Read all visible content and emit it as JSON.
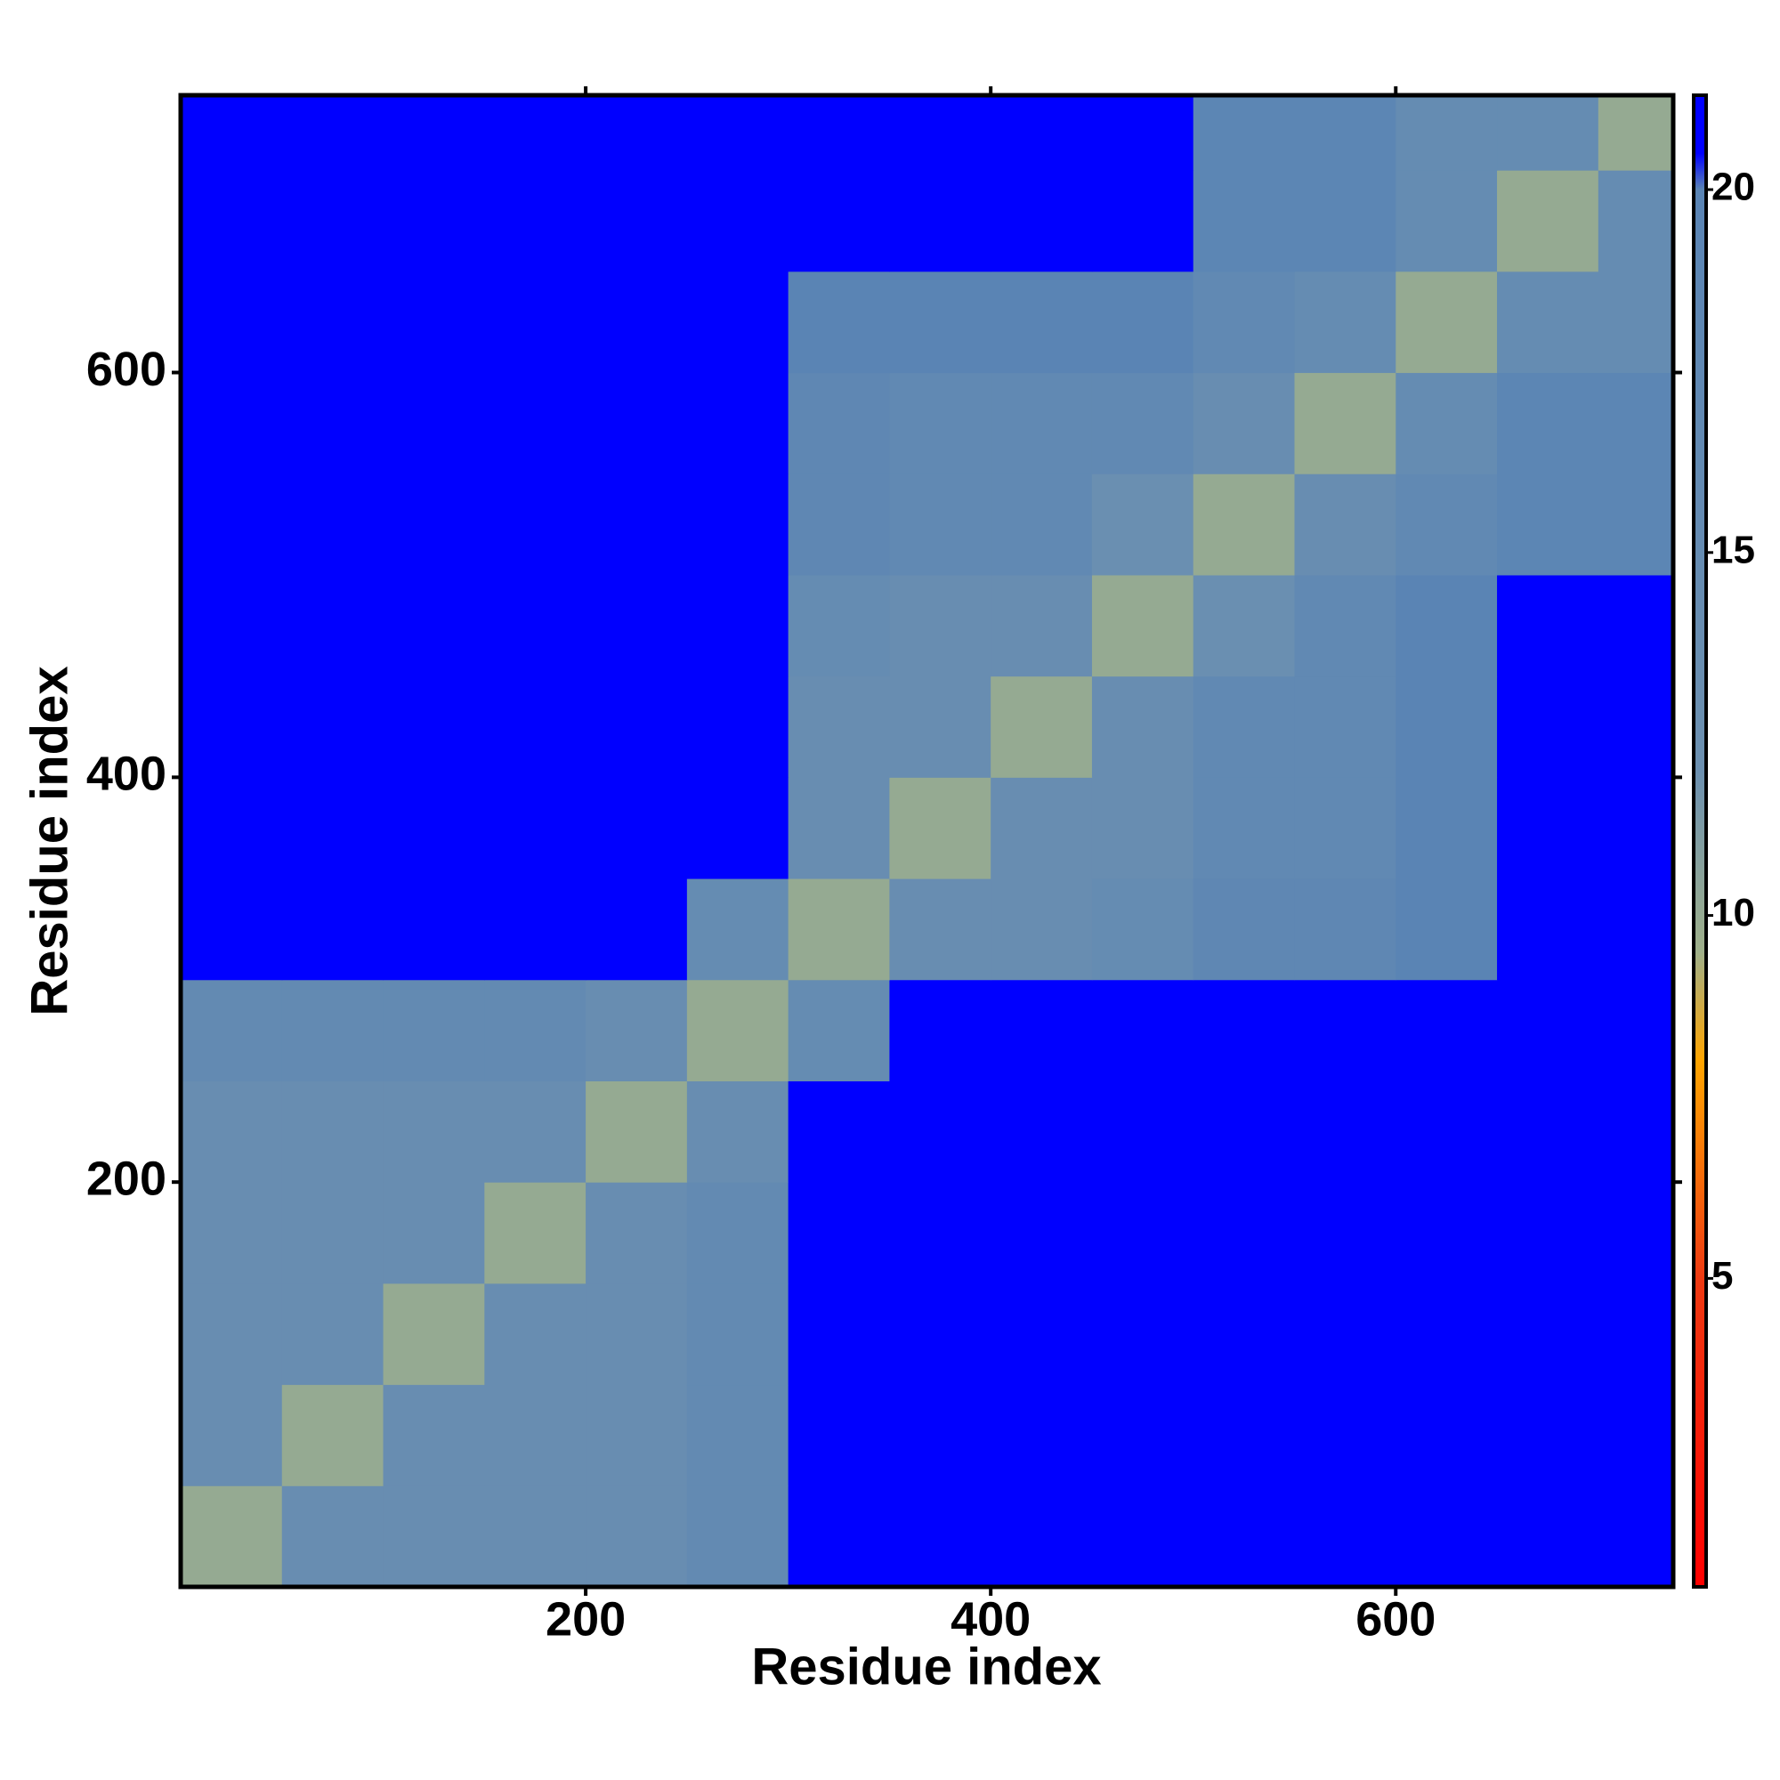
{
  "chart_data": {
    "type": "heatmap",
    "xlabel": "Residue index",
    "ylabel": "Residue index",
    "xlim": [
      0,
      737
    ],
    "ylim": [
      0,
      737
    ],
    "xticks": [
      200,
      400,
      600
    ],
    "yticks": [
      200,
      400,
      600
    ],
    "x_bins": [
      0,
      50,
      100,
      150,
      200,
      250,
      300,
      350,
      400,
      450,
      500,
      550,
      600,
      650,
      700,
      737
    ],
    "y_bins": [
      0,
      50,
      100,
      150,
      200,
      250,
      300,
      350,
      400,
      450,
      500,
      550,
      600,
      650,
      700,
      737
    ],
    "values": [
      [
        10,
        14,
        14,
        14,
        14,
        16,
        21,
        21,
        21,
        21,
        21,
        21,
        21,
        21,
        21
      ],
      [
        14,
        10,
        14,
        14,
        14,
        16,
        21,
        21,
        21,
        21,
        21,
        21,
        21,
        21,
        21
      ],
      [
        14,
        14,
        10,
        14,
        14,
        16,
        21,
        21,
        21,
        21,
        21,
        21,
        21,
        21,
        21
      ],
      [
        14,
        14,
        14,
        10,
        14,
        16,
        21,
        21,
        21,
        21,
        21,
        21,
        21,
        21,
        21
      ],
      [
        14,
        14,
        14,
        14,
        10,
        14,
        21,
        21,
        21,
        21,
        21,
        21,
        21,
        21,
        21
      ],
      [
        16,
        16,
        16,
        16,
        14,
        10,
        15,
        21,
        21,
        21,
        21,
        21,
        21,
        21,
        21
      ],
      [
        21,
        21,
        21,
        21,
        21,
        15,
        10,
        14,
        14,
        15,
        18,
        18,
        20,
        21,
        21
      ],
      [
        21,
        21,
        21,
        21,
        21,
        21,
        14,
        10,
        14,
        14,
        17,
        17,
        20,
        21,
        21
      ],
      [
        21,
        21,
        21,
        21,
        21,
        21,
        14,
        14,
        10,
        14,
        17,
        17,
        20,
        21,
        21
      ],
      [
        21,
        21,
        21,
        21,
        21,
        21,
        15,
        14,
        14,
        10,
        13,
        17,
        20,
        21,
        21
      ],
      [
        21,
        21,
        21,
        21,
        21,
        21,
        18,
        17,
        17,
        13,
        10,
        14,
        17,
        19,
        19
      ],
      [
        21,
        21,
        21,
        21,
        21,
        21,
        18,
        17,
        17,
        17,
        14,
        10,
        15,
        19,
        19
      ],
      [
        21,
        21,
        21,
        21,
        21,
        21,
        20,
        20,
        20,
        20,
        17,
        15,
        10,
        15,
        15
      ],
      [
        21,
        21,
        21,
        21,
        21,
        21,
        21,
        21,
        21,
        21,
        19,
        19,
        15,
        10,
        15
      ],
      [
        21,
        21,
        21,
        21,
        21,
        21,
        21,
        21,
        21,
        21,
        19,
        19,
        15,
        15,
        10
      ]
    ],
    "clim": [
      0.75,
      21.3
    ],
    "cticks": [
      5,
      10,
      15,
      20
    ],
    "colorscale": [
      [
        0.75,
        "#ff0000"
      ],
      [
        5,
        "#ee3a12"
      ],
      [
        8,
        "#ffa500"
      ],
      [
        9.5,
        "#9fb08a"
      ],
      [
        12,
        "#6c90b0"
      ],
      [
        20,
        "#5a84b4"
      ],
      [
        20.5,
        "#0000ff"
      ],
      [
        21.3,
        "#0000ff"
      ]
    ]
  }
}
